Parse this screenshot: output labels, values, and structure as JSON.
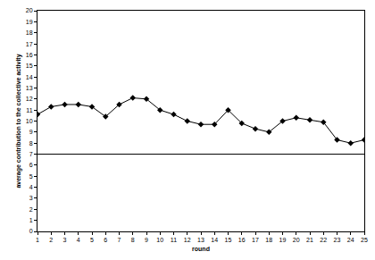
{
  "chart_data": {
    "type": "line",
    "x": [
      1,
      2,
      3,
      4,
      5,
      6,
      7,
      8,
      9,
      10,
      11,
      12,
      13,
      14,
      15,
      16,
      17,
      18,
      19,
      20,
      21,
      22,
      23,
      24,
      25
    ],
    "values": [
      10.6,
      11.3,
      11.5,
      11.5,
      11.3,
      10.4,
      11.5,
      12.1,
      12.0,
      11.0,
      10.6,
      10.0,
      9.7,
      9.7,
      11.0,
      9.8,
      9.3,
      9.0,
      10.0,
      10.3,
      10.1,
      9.9,
      8.3,
      8.0,
      8.3
    ],
    "color": "#000000",
    "marker": "diamond",
    "line_style": "solid",
    "xlabel": "round",
    "ylabel": "average contribution to the collective activity",
    "xlim": [
      1,
      25
    ],
    "xticks": [
      1,
      2,
      3,
      4,
      5,
      6,
      7,
      8,
      9,
      10,
      11,
      12,
      13,
      14,
      15,
      16,
      17,
      18,
      19,
      20,
      21,
      22,
      23,
      24,
      25
    ],
    "ylim": [
      0,
      20
    ],
    "yticks": [
      0,
      1,
      2,
      3,
      4,
      5,
      6,
      7,
      8,
      9,
      10,
      11,
      12,
      13,
      14,
      15,
      16,
      17,
      18,
      19,
      20
    ],
    "hline": 7,
    "grid": false
  }
}
